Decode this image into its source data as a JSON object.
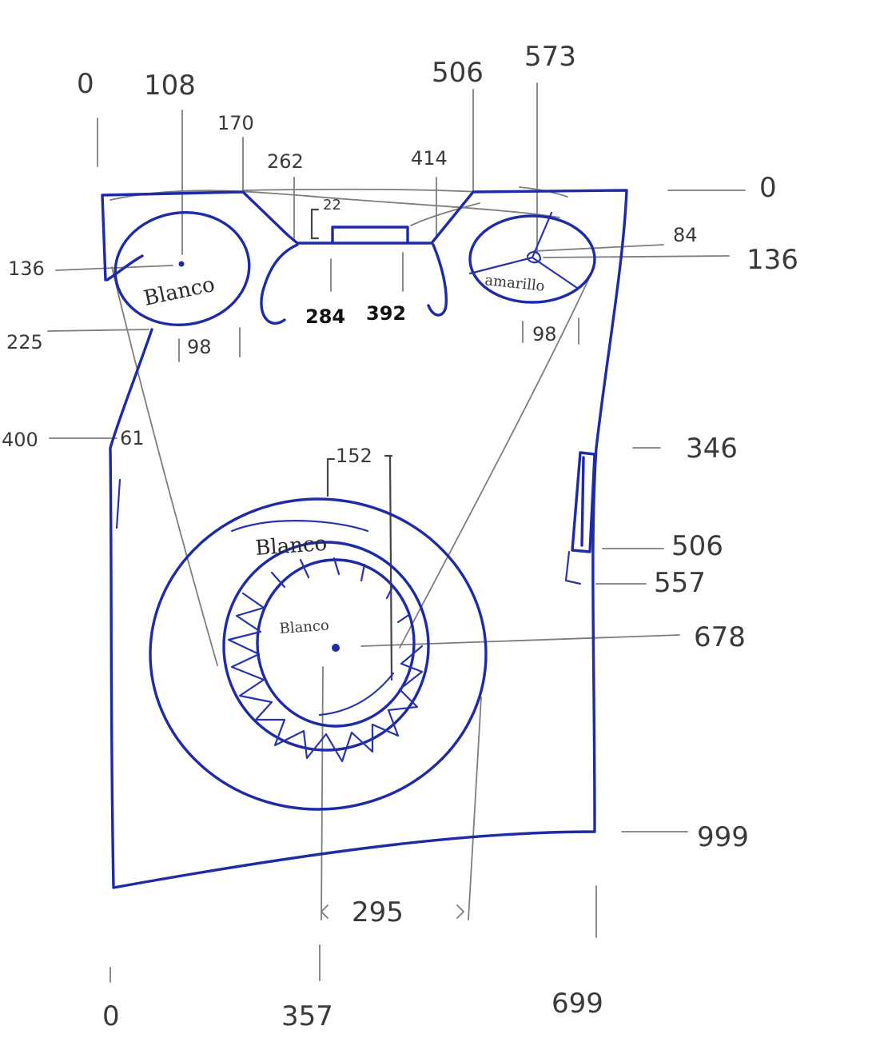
{
  "labels": {
    "left_knob": "Blanco",
    "right_knob": "amarillo",
    "door_ring": "Blanco",
    "door_glass": "Blanco"
  },
  "dimensions": {
    "top_x0": "0",
    "top_x108": "108",
    "top_x170": "170",
    "top_x262": "262",
    "top_x414": "414",
    "top_x506": "506",
    "top_x573": "573",
    "slot_22": "22",
    "slot_284": "284",
    "slot_392": "392",
    "knob_r_left": "98",
    "knob_r_right": "98",
    "angle_84": "84",
    "left_136": "136",
    "left_225": "225",
    "left_400": "400",
    "left_61": "61",
    "right_0": "0",
    "right_136": "136",
    "right_346": "346",
    "right_506": "506",
    "right_557": "557",
    "right_678": "678",
    "right_999": "999",
    "door_152": "152",
    "door_295": "295",
    "bottom_0": "0",
    "bottom_357": "357",
    "bottom_699": "699"
  }
}
